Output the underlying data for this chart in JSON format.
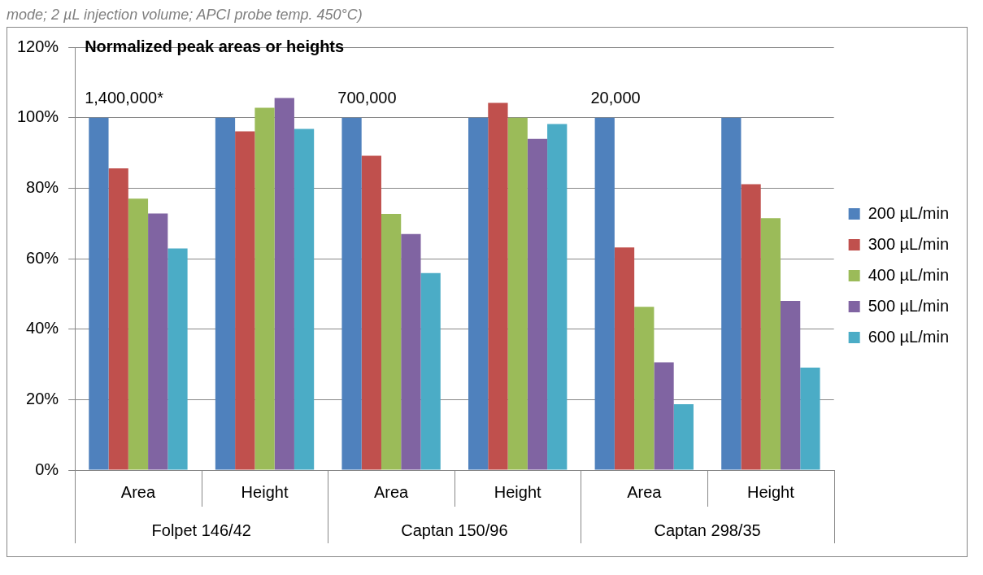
{
  "chart_data": {
    "type": "bar",
    "title": "Normalized peak areas or heights",
    "categories": [
      "Area",
      "Height",
      "Area",
      "Height",
      "Area",
      "Height"
    ],
    "series": [
      {
        "name": "200 µL/min",
        "color": "#4f81bd",
        "values": [
          100,
          100,
          100,
          100,
          100,
          100
        ]
      },
      {
        "name": "300 µL/min",
        "color": "#c0504d",
        "values": [
          85.6,
          96.1,
          89.2,
          104.2,
          63.2,
          81.1
        ]
      },
      {
        "name": "400 µL/min",
        "color": "#9bbb59",
        "values": [
          77.0,
          102.8,
          72.7,
          100,
          46.3,
          71.5
        ]
      },
      {
        "name": "500 µL/min",
        "color": "#8064a2",
        "values": [
          72.8,
          105.6,
          67.0,
          94.0,
          30.6,
          48.0
        ]
      },
      {
        "name": "600 µL/min",
        "color": "#4bacc6",
        "values": [
          62.9,
          96.8,
          55.9,
          98.2,
          18.7,
          29.1
        ]
      }
    ],
    "ylim": [
      0,
      120
    ],
    "yticks": [
      {
        "value": 0,
        "label": "0%"
      },
      {
        "value": 20,
        "label": "20%"
      },
      {
        "value": 40,
        "label": "40%"
      },
      {
        "value": 60,
        "label": "60%"
      },
      {
        "value": 80,
        "label": "80%"
      },
      {
        "value": 100,
        "label": "100%"
      },
      {
        "value": 120,
        "label": "120%"
      }
    ],
    "grid": "y",
    "legend": "right",
    "annotations": [
      "mode; 2 µL injection volume; APCI probe temp. 450°C)",
      "1,400,000*",
      "700,000",
      "20,000",
      "Folpet 146/42",
      "Captan 150/96",
      "Captan 298/35"
    ]
  }
}
